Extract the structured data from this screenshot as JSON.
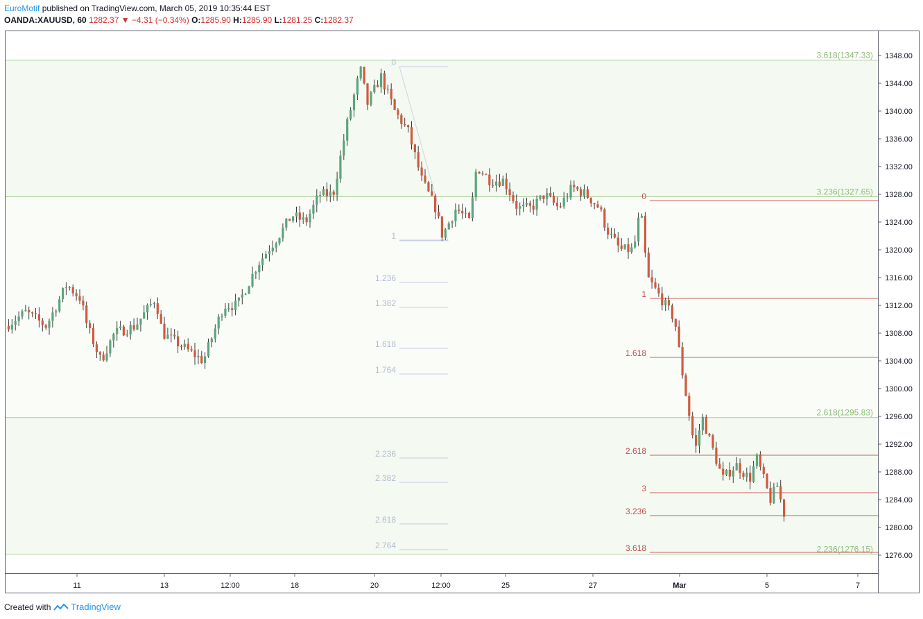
{
  "header": {
    "author": "EuroMotif",
    "published": " published on TradingView.com, March 05, 2019 10:35:44 EST",
    "symbol": "OANDA:XAUUSD, 60",
    "last": "1282.37",
    "arrow": "▼",
    "change": "−4.31 (−0.34%)",
    "open_label": "O:",
    "open": "1285.90",
    "high_label": "H:",
    "high": "1285.90",
    "low_label": "L:",
    "low": "1281.25",
    "close_label": "C:",
    "close": "1282.37"
  },
  "footer": {
    "created_with": "Created with",
    "brand": "TradingView"
  },
  "colors": {
    "up": "#5ba57d",
    "down": "#cf5a3e",
    "green_band": "#f4f9f1",
    "green_line": "#a9cf97",
    "green_text": "#8cbe78",
    "red_line": "#cd6060",
    "red_text": "#c24f4f",
    "blue_line": "#c6cce6",
    "blue_text": "#b5bbd3"
  },
  "chart_data": {
    "type": "candlestick",
    "symbol": "OANDA:XAUUSD",
    "timeframe": "60",
    "y_range": [
      1274,
      1350
    ],
    "y_ticks": [
      "1348.00",
      "1344.00",
      "1340.00",
      "1336.00",
      "1332.00",
      "1328.00",
      "1324.00",
      "1320.00",
      "1316.00",
      "1312.00",
      "1308.00",
      "1304.00",
      "1300.00",
      "1296.00",
      "1292.00",
      "1288.00",
      "1284.00",
      "1280.00",
      "1276.00"
    ],
    "x_ticks": [
      "11",
      "13",
      "12:00",
      "18",
      "20",
      "12:00",
      "25",
      "27",
      "Mar",
      "5",
      "7"
    ],
    "price_path": [
      [
        0,
        1309
      ],
      [
        3,
        1311
      ],
      [
        6,
        1309
      ],
      [
        9,
        1315
      ],
      [
        11,
        1313
      ],
      [
        12,
        1309
      ],
      [
        14,
        1304
      ],
      [
        16,
        1308
      ],
      [
        19,
        1309
      ],
      [
        22,
        1313
      ],
      [
        23,
        1308
      ],
      [
        26,
        1306
      ],
      [
        29,
        1304
      ],
      [
        32,
        1312
      ],
      [
        34,
        1312
      ],
      [
        37,
        1318
      ],
      [
        40,
        1322
      ],
      [
        42,
        1325
      ],
      [
        44,
        1324
      ],
      [
        46,
        1328
      ],
      [
        48,
        1328
      ],
      [
        50,
        1338
      ],
      [
        52,
        1346
      ],
      [
        53,
        1341
      ],
      [
        55,
        1345
      ],
      [
        57,
        1340
      ],
      [
        59,
        1337
      ],
      [
        61,
        1330
      ],
      [
        63,
        1326
      ],
      [
        64,
        1322
      ],
      [
        66,
        1326
      ],
      [
        68,
        1324
      ],
      [
        69,
        1332
      ],
      [
        71,
        1330
      ],
      [
        73,
        1330
      ],
      [
        75,
        1326
      ],
      [
        77,
        1326
      ],
      [
        79,
        1328
      ],
      [
        81,
        1326
      ],
      [
        83,
        1329
      ],
      [
        85,
        1328
      ],
      [
        87,
        1326
      ],
      [
        88,
        1323
      ],
      [
        90,
        1320
      ],
      [
        92,
        1320
      ],
      [
        93,
        1326
      ],
      [
        94,
        1316
      ],
      [
        96,
        1313
      ],
      [
        98,
        1310
      ],
      [
        99,
        1303
      ],
      [
        100,
        1297
      ],
      [
        101,
        1291
      ],
      [
        102,
        1296
      ],
      [
        104,
        1290
      ],
      [
        105,
        1287
      ],
      [
        107,
        1289
      ],
      [
        109,
        1287
      ],
      [
        110,
        1290
      ],
      [
        112,
        1284
      ],
      [
        113,
        1286
      ],
      [
        114,
        1282
      ]
    ],
    "fib_band_green": {
      "levels": [
        {
          "label": "3.618(1347.33)",
          "price": 1347.33
        },
        {
          "label": "3.236(1327.65)",
          "price": 1327.65
        },
        {
          "label": "2.618(1295.83)",
          "price": 1295.83
        },
        {
          "label": "2.236(1276.15)",
          "price": 1276.15
        }
      ]
    },
    "fib_extension_blue": {
      "levels": [
        {
          "label": "0",
          "price": 1346.4
        },
        {
          "label": "1",
          "price": 1321.4
        },
        {
          "label": "1.236",
          "price": 1315.3
        },
        {
          "label": "1.382",
          "price": 1311.7
        },
        {
          "label": "1.618",
          "price": 1305.8
        },
        {
          "label": "1.764",
          "price": 1302.1
        },
        {
          "label": "2.236",
          "price": 1290.0
        },
        {
          "label": "2.382",
          "price": 1286.5
        },
        {
          "label": "2.618",
          "price": 1280.5
        },
        {
          "label": "2.764",
          "price": 1276.8
        }
      ]
    },
    "fib_extension_red": {
      "levels": [
        {
          "label": "0",
          "price": 1327.1
        },
        {
          "label": "1",
          "price": 1313.0
        },
        {
          "label": "1.618",
          "price": 1304.5
        },
        {
          "label": "2.618",
          "price": 1290.4
        },
        {
          "label": "3",
          "price": 1285.0
        },
        {
          "label": "3.236",
          "price": 1281.7
        },
        {
          "label": "3.618",
          "price": 1276.4
        }
      ]
    }
  }
}
